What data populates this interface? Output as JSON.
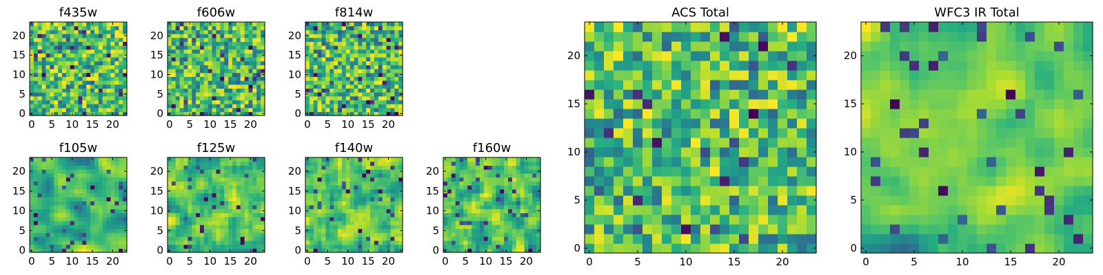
{
  "chart_data": [
    {
      "type": "heatmap",
      "title": "f435w",
      "colormap": "viridis",
      "size": 24,
      "xticks": [
        "0",
        "5",
        "10",
        "15",
        "20"
      ],
      "yticks": [
        "0",
        "5",
        "10",
        "15",
        "20"
      ],
      "smoothness": 0,
      "seed": 11
    },
    {
      "type": "heatmap",
      "title": "f606w",
      "colormap": "viridis",
      "size": 24,
      "xticks": [
        "0",
        "5",
        "10",
        "15",
        "20"
      ],
      "yticks": [
        "0",
        "5",
        "10",
        "15",
        "20"
      ],
      "smoothness": 0,
      "seed": 23
    },
    {
      "type": "heatmap",
      "title": "f814w",
      "colormap": "viridis",
      "size": 24,
      "xticks": [
        "0",
        "5",
        "10",
        "15",
        "20"
      ],
      "yticks": [
        "0",
        "5",
        "10",
        "15",
        "20"
      ],
      "smoothness": 0,
      "seed": 37
    },
    {
      "type": "heatmap",
      "title": "f105w",
      "colormap": "viridis",
      "size": 24,
      "xticks": [
        "0",
        "5",
        "10",
        "15",
        "20"
      ],
      "yticks": [
        "0",
        "5",
        "10",
        "15",
        "20"
      ],
      "smoothness": 2,
      "seed": 41
    },
    {
      "type": "heatmap",
      "title": "f125w",
      "colormap": "viridis",
      "size": 24,
      "xticks": [
        "0",
        "5",
        "10",
        "15",
        "20"
      ],
      "yticks": [
        "0",
        "5",
        "10",
        "15",
        "20"
      ],
      "smoothness": 1,
      "seed": 53
    },
    {
      "type": "heatmap",
      "title": "f140w",
      "colormap": "viridis",
      "size": 24,
      "xticks": [
        "0",
        "5",
        "10",
        "15",
        "20"
      ],
      "yticks": [
        "0",
        "5",
        "10",
        "15",
        "20"
      ],
      "smoothness": 1,
      "seed": 67
    },
    {
      "type": "heatmap",
      "title": "f160w",
      "colormap": "viridis",
      "size": 24,
      "xticks": [
        "0",
        "5",
        "10",
        "15",
        "20"
      ],
      "yticks": [
        "0",
        "5",
        "10",
        "15",
        "20"
      ],
      "smoothness": 1,
      "seed": 79
    },
    {
      "type": "heatmap",
      "title": "ACS Total",
      "colormap": "viridis",
      "size": 24,
      "xticks": [
        "0",
        "5",
        "10",
        "15",
        "20"
      ],
      "yticks": [
        "0",
        "5",
        "10",
        "15",
        "20"
      ],
      "smoothness": 0,
      "seed": 83
    },
    {
      "type": "heatmap",
      "title": "WFC3 IR Total",
      "colormap": "viridis",
      "size": 24,
      "xticks": [
        "0",
        "5",
        "10",
        "15",
        "20"
      ],
      "yticks": [
        "0",
        "5",
        "10",
        "15",
        "20"
      ],
      "smoothness": 2,
      "seed": 97
    }
  ]
}
